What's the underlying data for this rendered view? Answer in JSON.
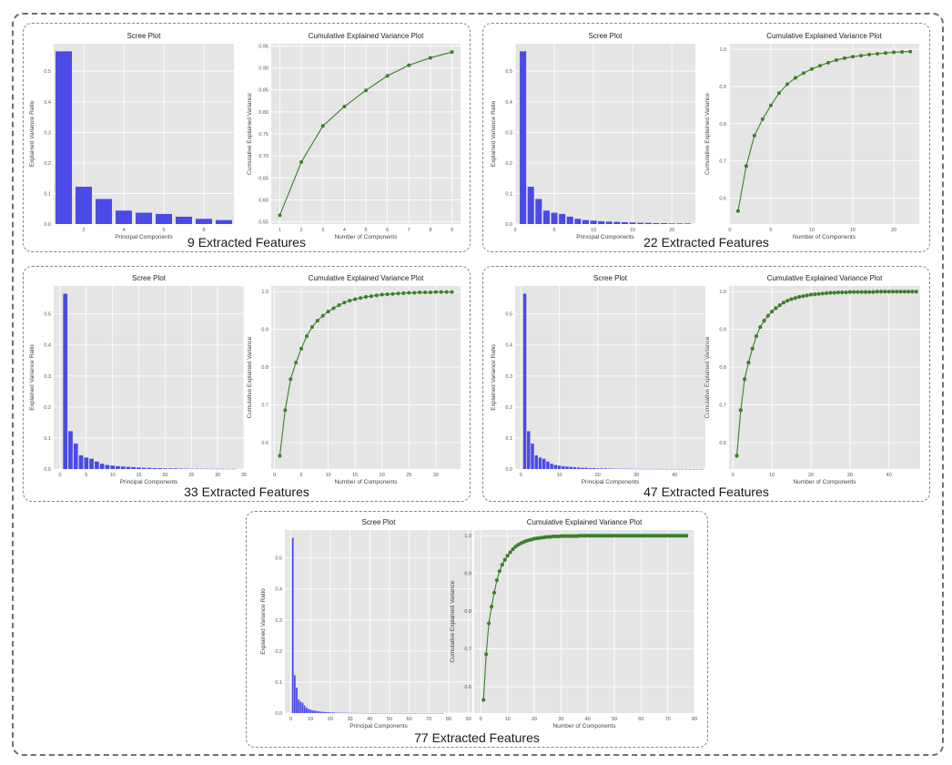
{
  "figure": {
    "scree_title": "Scree Plot",
    "cum_title": "Cumulative Explained Variance Plot",
    "scree_xlabel": "Principal Components",
    "scree_ylabel": "Explained Variance Ratio",
    "cum_xlabel": "Number of Components",
    "cum_ylabel": "Cumulative Explained Variance",
    "bar_color": "#4a4ae6",
    "line_color": "#3c7f2a",
    "plot_bg": "#e5e5e5",
    "grid_color": "#ffffff"
  },
  "chart_data": [
    {
      "caption": "9 Extracted Features",
      "n_components": 9,
      "scree": {
        "type": "bar",
        "xlim": [
          0.5,
          9.5
        ],
        "ylim": [
          0,
          0.59
        ],
        "xticks": [
          2,
          4,
          6,
          8
        ],
        "yticks": [
          0.0,
          0.1,
          0.2,
          0.3,
          0.4,
          0.5
        ],
        "values": [
          0.565,
          0.122,
          0.082,
          0.044,
          0.037,
          0.033,
          0.024,
          0.017,
          0.013
        ]
      },
      "cumulative": {
        "type": "line",
        "xlim": [
          0.6,
          9.4
        ],
        "ylim": [
          0.545,
          0.955
        ],
        "xticks": [
          1,
          2,
          3,
          4,
          5,
          6,
          7,
          8,
          9
        ],
        "yticks": [
          0.55,
          0.6,
          0.65,
          0.7,
          0.75,
          0.8,
          0.85,
          0.9,
          0.95
        ],
        "ytick_decimals": 2,
        "values": [
          0.565,
          0.686,
          0.768,
          0.812,
          0.849,
          0.882,
          0.906,
          0.923,
          0.936
        ]
      }
    },
    {
      "caption": "22 Extracted Features",
      "n_components": 22,
      "scree": {
        "type": "bar",
        "xlim": [
          0,
          23
        ],
        "ylim": [
          0,
          0.59
        ],
        "xticks": [
          0,
          5,
          10,
          15,
          20
        ],
        "yticks": [
          0.0,
          0.1,
          0.2,
          0.3,
          0.4,
          0.5
        ],
        "values": [
          0.565,
          0.122,
          0.082,
          0.044,
          0.037,
          0.033,
          0.024,
          0.017,
          0.013,
          0.011,
          0.009,
          0.008,
          0.007,
          0.006,
          0.005,
          0.004,
          0.004,
          0.003,
          0.003,
          0.002,
          0.002,
          0.002
        ]
      },
      "cumulative": {
        "type": "line",
        "xlim": [
          -0.1,
          23.1
        ],
        "ylim": [
          0.53,
          1.015
        ],
        "xticks": [
          0,
          5,
          10,
          15,
          20
        ],
        "yticks": [
          0.6,
          0.7,
          0.8,
          0.9,
          1.0
        ],
        "ytick_decimals": 1,
        "values": [
          0.565,
          0.686,
          0.768,
          0.812,
          0.849,
          0.882,
          0.906,
          0.923,
          0.936,
          0.947,
          0.956,
          0.964,
          0.971,
          0.976,
          0.98,
          0.983,
          0.986,
          0.988,
          0.99,
          0.992,
          0.993,
          0.994
        ]
      }
    },
    {
      "caption": "33 Extracted Features",
      "n_components": 33,
      "scree": {
        "type": "bar",
        "xlim": [
          -1.2,
          35
        ],
        "ylim": [
          0,
          0.59
        ],
        "xticks": [
          0,
          5,
          10,
          15,
          20,
          25,
          30,
          35
        ],
        "yticks": [
          0.0,
          0.1,
          0.2,
          0.3,
          0.4,
          0.5
        ],
        "values": [
          0.565,
          0.122,
          0.082,
          0.044,
          0.037,
          0.033,
          0.024,
          0.017,
          0.013,
          0.011,
          0.009,
          0.008,
          0.007,
          0.006,
          0.005,
          0.004,
          0.004,
          0.003,
          0.003,
          0.002,
          0.002,
          0.002,
          0.0015,
          0.0013,
          0.0011,
          0.001,
          0.0009,
          0.0008,
          0.0007,
          0.0006,
          0.0006,
          0.0005,
          0.0005
        ]
      },
      "cumulative": {
        "type": "line",
        "xlim": [
          -0.6,
          34.6
        ],
        "ylim": [
          0.53,
          1.015
        ],
        "xticks": [
          0,
          5,
          10,
          15,
          20,
          25,
          30
        ],
        "yticks": [
          0.6,
          0.7,
          0.8,
          0.9,
          1.0
        ],
        "ytick_decimals": 1,
        "values": [
          0.565,
          0.686,
          0.768,
          0.812,
          0.849,
          0.882,
          0.906,
          0.923,
          0.936,
          0.947,
          0.956,
          0.964,
          0.971,
          0.976,
          0.98,
          0.983,
          0.986,
          0.988,
          0.99,
          0.992,
          0.993,
          0.994,
          0.995,
          0.996,
          0.997,
          0.997,
          0.998,
          0.998,
          0.998,
          0.999,
          0.999,
          0.999,
          0.999
        ]
      }
    },
    {
      "caption": "47 Extracted Features",
      "n_components": 47,
      "scree": {
        "type": "bar",
        "xlim": [
          -1.5,
          48
        ],
        "ylim": [
          0,
          0.59
        ],
        "xticks": [
          0,
          10,
          20,
          30,
          40
        ],
        "yticks": [
          0.0,
          0.1,
          0.2,
          0.3,
          0.4,
          0.5
        ],
        "values": [
          0.565,
          0.122,
          0.082,
          0.044,
          0.037,
          0.033,
          0.024,
          0.017,
          0.013,
          0.011,
          0.009,
          0.008,
          0.007,
          0.006,
          0.005,
          0.004,
          0.004,
          0.003,
          0.003,
          0.002,
          0.002,
          0.002,
          0.0015,
          0.0013,
          0.0011,
          0.001,
          0.0009,
          0.0008,
          0.0007,
          0.0006,
          0.0006,
          0.0005,
          0.0005,
          0.0004,
          0.0004,
          0.0003,
          0.0003,
          0.0003,
          0.0002,
          0.0002,
          0.0002,
          0.0002,
          0.0001,
          0.0001,
          0.0001,
          0.0001,
          0.0001
        ]
      },
      "cumulative": {
        "type": "line",
        "xlim": [
          -1,
          48
        ],
        "ylim": [
          0.53,
          1.015
        ],
        "xticks": [
          0,
          10,
          20,
          30,
          40
        ],
        "yticks": [
          0.6,
          0.7,
          0.8,
          0.9,
          1.0
        ],
        "ytick_decimals": 1,
        "values": [
          0.565,
          0.686,
          0.768,
          0.812,
          0.849,
          0.882,
          0.906,
          0.923,
          0.936,
          0.947,
          0.956,
          0.964,
          0.971,
          0.976,
          0.98,
          0.983,
          0.986,
          0.988,
          0.99,
          0.992,
          0.993,
          0.994,
          0.995,
          0.996,
          0.997,
          0.997,
          0.998,
          0.998,
          0.998,
          0.999,
          0.999,
          0.999,
          0.999,
          0.999,
          0.999,
          0.999,
          1.0,
          1.0,
          1.0,
          1.0,
          1.0,
          1.0,
          1.0,
          1.0,
          1.0,
          1.0,
          1.0
        ]
      }
    },
    {
      "caption": "77 Extracted Features",
      "n_components": 77,
      "scree": {
        "type": "bar",
        "xlim": [
          -3,
          92
        ],
        "ylim": [
          0,
          0.59
        ],
        "xticks": [
          0,
          10,
          20,
          30,
          40,
          50,
          60,
          70,
          80,
          90
        ],
        "yticks": [
          0.0,
          0.1,
          0.2,
          0.3,
          0.4,
          0.5
        ],
        "values": [
          0.565,
          0.122,
          0.082,
          0.044,
          0.037,
          0.033,
          0.024,
          0.017,
          0.013,
          0.011,
          0.009,
          0.008,
          0.007,
          0.006,
          0.005,
          0.004,
          0.004,
          0.003,
          0.003,
          0.002,
          0.002,
          0.002,
          0.0015,
          0.0013,
          0.0011,
          0.001,
          0.0009,
          0.0008,
          0.0007,
          0.0006,
          0.0006,
          0.0005,
          0.0005,
          0.0004,
          0.0004,
          0.0003,
          0.0003,
          0.0003,
          0.0002,
          0.0002,
          0.0002,
          0.0002,
          0.0001,
          0.0001,
          0.0001,
          0.0001,
          0.0001,
          0.0001,
          0.0001,
          0.0001,
          0.0001,
          0.0001,
          0.0001,
          0.0001,
          0.0001,
          0.0001,
          0.0001,
          0.0001,
          0.0001,
          0.0001,
          0.0001,
          0.0001,
          0.0001,
          0.0001,
          0.0001,
          0.0001,
          0.0001,
          0.0001,
          0.0001,
          0.0001,
          0.0001,
          0.0001,
          0.0001,
          0.0001,
          0.0001,
          0.0001,
          0.0001
        ]
      },
      "cumulative": {
        "type": "line",
        "xlim": [
          -2.5,
          80
        ],
        "ylim": [
          0.53,
          1.015
        ],
        "xticks": [
          0,
          10,
          20,
          30,
          40,
          50,
          60,
          70,
          80
        ],
        "yticks": [
          0.6,
          0.7,
          0.8,
          0.9,
          1.0
        ],
        "ytick_decimals": 1,
        "values": [
          0.565,
          0.686,
          0.768,
          0.812,
          0.849,
          0.882,
          0.906,
          0.923,
          0.936,
          0.947,
          0.956,
          0.964,
          0.971,
          0.976,
          0.98,
          0.983,
          0.986,
          0.988,
          0.99,
          0.992,
          0.993,
          0.994,
          0.995,
          0.996,
          0.997,
          0.997,
          0.998,
          0.998,
          0.998,
          0.999,
          0.999,
          0.999,
          0.999,
          0.999,
          0.999,
          0.999,
          1.0,
          1.0,
          1.0,
          1.0,
          1.0,
          1.0,
          1.0,
          1.0,
          1.0,
          1.0,
          1.0,
          1.0,
          1.0,
          1.0,
          1.0,
          1.0,
          1.0,
          1.0,
          1.0,
          1.0,
          1.0,
          1.0,
          1.0,
          1.0,
          1.0,
          1.0,
          1.0,
          1.0,
          1.0,
          1.0,
          1.0,
          1.0,
          1.0,
          1.0,
          1.0,
          1.0,
          1.0,
          1.0,
          1.0,
          1.0,
          1.0
        ]
      }
    }
  ]
}
